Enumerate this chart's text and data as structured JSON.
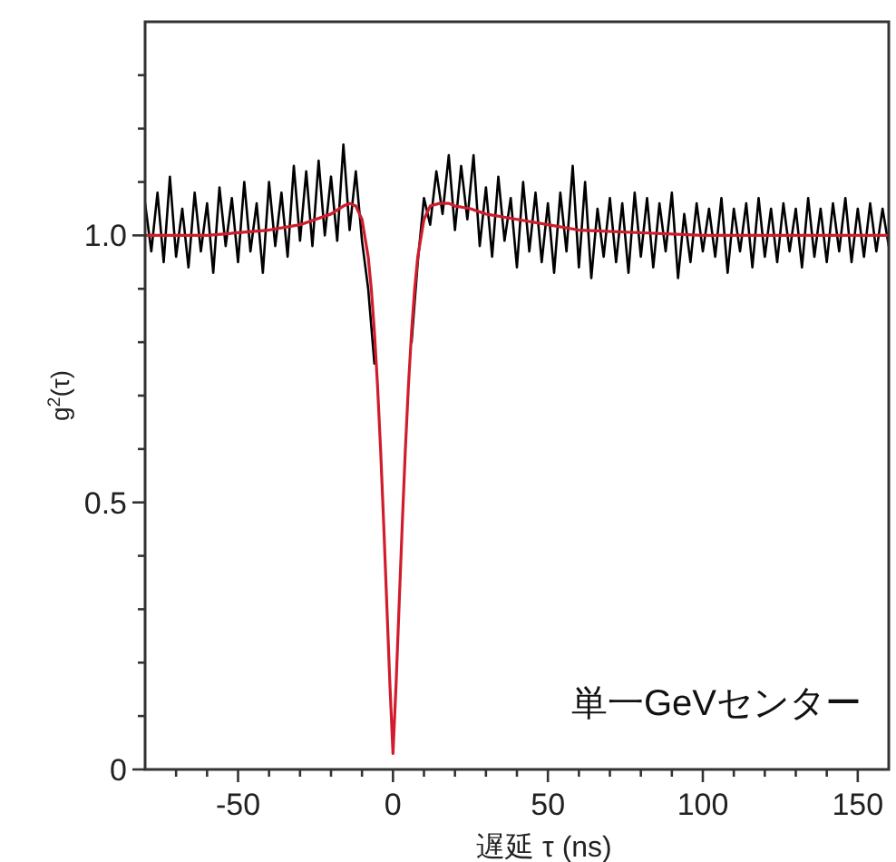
{
  "chart_data": {
    "type": "line",
    "xlabel": "遅延 τ (ns)",
    "ylabel": "g$^{2}$(τ)",
    "annotations": [
      "単一GeVセンター"
    ],
    "xlim": [
      -80,
      160
    ],
    "xticks": [
      {
        "value": -70,
        "label": null
      },
      {
        "value": -60,
        "label": null
      },
      -50,
      {
        "value": -40,
        "label": null
      },
      {
        "value": -30,
        "label": null
      },
      {
        "value": -20,
        "label": null
      },
      {
        "value": -10,
        "label": null
      },
      0,
      {
        "value": 10,
        "label": null
      },
      {
        "value": 20,
        "label": null
      },
      {
        "value": 30,
        "label": null
      },
      {
        "value": 40,
        "label": null
      },
      50,
      {
        "value": 60,
        "label": null
      },
      {
        "value": 70,
        "label": null
      },
      {
        "value": 80,
        "label": null
      },
      {
        "value": 90,
        "label": null
      },
      100,
      {
        "value": 110,
        "label": null
      },
      {
        "value": 120,
        "label": null
      },
      {
        "value": 130,
        "label": null
      },
      {
        "value": 140,
        "label": null
      },
      150
    ],
    "ylim": [
      0,
      1.4
    ],
    "yticks": [
      0,
      {
        "value": 0.1,
        "label": null
      },
      {
        "value": 0.2,
        "label": null
      },
      {
        "value": 0.3,
        "label": null
      },
      {
        "value": 0.4,
        "label": null
      },
      0.5,
      {
        "value": 0.6,
        "label": null
      },
      {
        "value": 0.7,
        "label": null
      },
      {
        "value": 0.8,
        "label": null
      },
      {
        "value": 0.9,
        "label": null
      },
      {
        "value": 1.0,
        "label": "1.0"
      },
      {
        "value": 1.1,
        "label": null
      },
      {
        "value": 1.2,
        "label": null
      },
      {
        "value": 1.3,
        "label": null
      }
    ],
    "line_style": "solid",
    "marker": "none",
    "series": [
      {
        "color": "#000000",
        "x": [
          -80,
          -78,
          -76,
          -74,
          -72,
          -70,
          -68,
          -66,
          -64,
          -62,
          -60,
          -58,
          -56,
          -54,
          -52,
          -50,
          -48,
          -46,
          -44,
          -42,
          -40,
          -38,
          -36,
          -34,
          -32,
          -30,
          -28,
          -26,
          -24,
          -22,
          -20,
          -18,
          -16,
          -14,
          -12,
          -10,
          -8,
          -6
        ],
        "values": [
          1.06,
          0.97,
          1.08,
          0.95,
          1.11,
          0.96,
          1.05,
          0.94,
          1.08,
          0.97,
          1.06,
          0.93,
          1.09,
          0.98,
          1.07,
          0.95,
          1.1,
          0.97,
          1.06,
          0.93,
          1.1,
          0.98,
          1.08,
          0.96,
          1.13,
          0.99,
          1.12,
          0.98,
          1.14,
          1.0,
          1.11,
          0.99,
          1.17,
          1.01,
          1.12,
          0.99,
          0.9,
          0.76
        ]
      },
      {
        "color": "#000000",
        "x": [
          6,
          8,
          10,
          12,
          14,
          16,
          18,
          20,
          22,
          24,
          26,
          28,
          30,
          32,
          34,
          36,
          38,
          40,
          42,
          44,
          46,
          48,
          50,
          52,
          54,
          56,
          58,
          60,
          62,
          64,
          66,
          68,
          70,
          72,
          74,
          76,
          78,
          80,
          82,
          84,
          86,
          88,
          90,
          92,
          94,
          96,
          98,
          100,
          102,
          104,
          106,
          108,
          110,
          112,
          114,
          116,
          118,
          120,
          122,
          124,
          126,
          128,
          130,
          132,
          134,
          136,
          138,
          140,
          142,
          144,
          146,
          148,
          150,
          152,
          154,
          156,
          158,
          160
        ],
        "values": [
          0.8,
          0.95,
          1.07,
          1.02,
          1.12,
          1.04,
          1.15,
          1.01,
          1.13,
          1.03,
          1.15,
          0.98,
          1.09,
          0.96,
          1.11,
          0.99,
          1.07,
          0.94,
          1.1,
          0.97,
          1.08,
          0.95,
          1.06,
          0.93,
          1.08,
          0.97,
          1.13,
          0.94,
          1.1,
          0.92,
          1.05,
          0.96,
          1.07,
          0.95,
          1.06,
          0.93,
          1.08,
          0.96,
          1.07,
          0.94,
          1.06,
          0.97,
          1.08,
          0.92,
          1.04,
          0.95,
          1.06,
          0.97,
          1.05,
          0.96,
          1.07,
          0.93,
          1.05,
          0.97,
          1.06,
          0.94,
          1.07,
          0.96,
          1.05,
          0.95,
          1.06,
          0.97,
          1.05,
          0.94,
          1.07,
          0.96,
          1.05,
          0.95,
          1.06,
          0.97,
          1.07,
          0.95,
          1.05,
          0.96,
          1.06,
          0.97,
          1.05,
          0.98
        ]
      },
      {
        "color": "#d01c2c",
        "x": [
          -80,
          -60,
          -40,
          -30,
          -20,
          -16,
          -14,
          -12,
          -10,
          -8,
          -7,
          -6,
          -5,
          -4,
          -3,
          -2,
          -1,
          0,
          1,
          2,
          3,
          4,
          5,
          6,
          7,
          8,
          10,
          12,
          15,
          18,
          20,
          25,
          30,
          40,
          50,
          60,
          80,
          100,
          120,
          140,
          160
        ],
        "values": [
          1.0,
          1.0,
          1.01,
          1.02,
          1.04,
          1.055,
          1.06,
          1.055,
          1.03,
          0.96,
          0.9,
          0.82,
          0.72,
          0.6,
          0.46,
          0.31,
          0.16,
          0.03,
          0.16,
          0.31,
          0.46,
          0.6,
          0.72,
          0.82,
          0.9,
          0.96,
          1.03,
          1.055,
          1.06,
          1.06,
          1.055,
          1.05,
          1.04,
          1.03,
          1.02,
          1.01,
          1.005,
          1.0,
          1.0,
          1.0,
          1.0
        ]
      }
    ]
  }
}
